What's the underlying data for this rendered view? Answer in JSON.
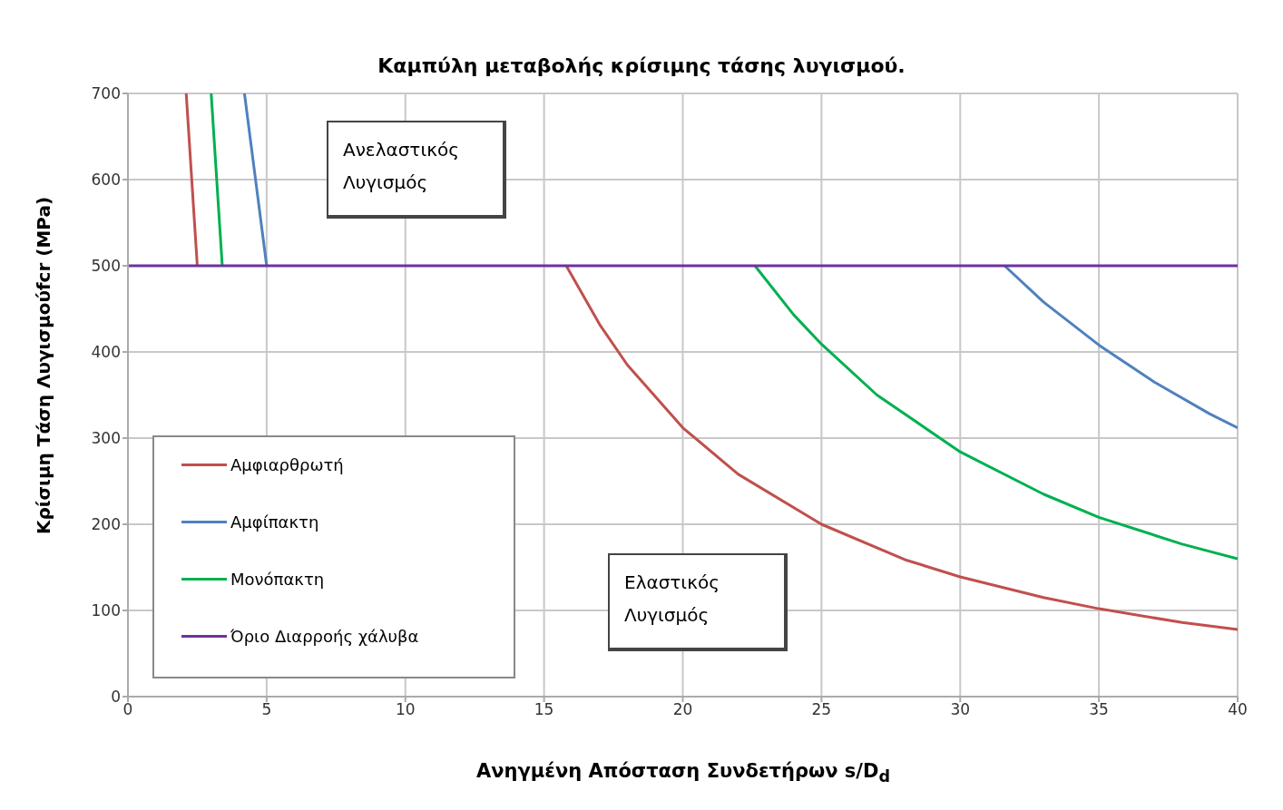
{
  "chart_data": {
    "type": "line",
    "title": "Καμπύλη μεταβολής κρίσιμης τάσης λυγισμού.",
    "xlabel": "Ανηγμένη Απόσταση Συνδετήρων  s/D$_{d}$",
    "ylabel": "Κρίσιμη Τάση  Λυγισμούfcr (MPa)",
    "series": [
      {
        "name": "Αμφιαρθρωτή",
        "color": "#c0504d",
        "x": [
          2.1,
          2.5,
          null,
          15.8,
          17,
          18,
          20,
          22,
          25,
          28,
          30,
          33,
          35,
          38,
          40
        ],
        "values": [
          700,
          500,
          null,
          500,
          432,
          385,
          312,
          258,
          200,
          159,
          139,
          115,
          102,
          86,
          78
        ]
      },
      {
        "name": "Αμφίπακτη",
        "color": "#4f81bd",
        "x": [
          4.2,
          5.0,
          null,
          31.6,
          33,
          35,
          37,
          39,
          40
        ],
        "values": [
          700,
          500,
          null,
          500,
          458,
          408,
          365,
          328,
          312
        ]
      },
      {
        "name": "Μονόπακτη",
        "color": "#00b050",
        "x": [
          3.0,
          3.4,
          null,
          22.6,
          24,
          25,
          27,
          30,
          33,
          35,
          38,
          40
        ],
        "values": [
          700,
          500,
          null,
          500,
          443,
          409,
          350,
          284,
          235,
          208,
          177,
          160
        ]
      },
      {
        "name": "Όριο Διαρροής χάλυβα",
        "color": "#7030a0",
        "x": [
          0,
          40
        ],
        "values": [
          500,
          500
        ]
      }
    ],
    "annotations": [
      "Ανελαστικός Λυγισμός",
      "Ελαστικός Λυγισμός"
    ],
    "xlim": [
      0,
      40
    ],
    "xticks": [
      0,
      5,
      10,
      15,
      20,
      25,
      30,
      35,
      40
    ],
    "ylim": [
      0,
      700
    ],
    "yticks": [
      0,
      100,
      200,
      300,
      400,
      500,
      600,
      700
    ],
    "grid": true,
    "legend": "bottom left",
    "marker": "none",
    "line_style": "solid"
  }
}
